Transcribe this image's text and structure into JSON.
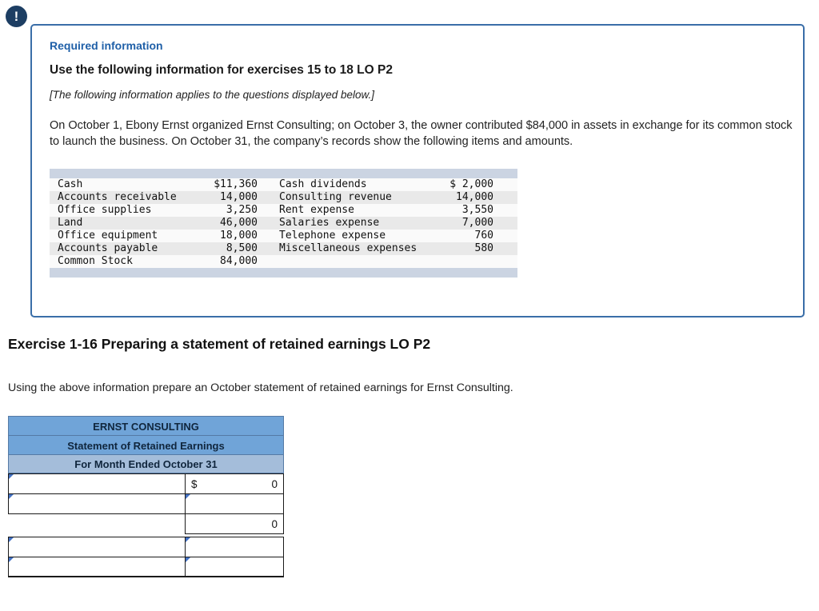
{
  "alert": {
    "icon": "!"
  },
  "info_box": {
    "required_label": "Required information",
    "title": "Use the following information for exercises 15 to 18 LO P2",
    "note": "[The following information applies to the questions displayed below.]",
    "paragraph": "On October 1, Ebony Ernst organized Ernst Consulting; on October 3, the owner contributed $84,000 in assets in exchange for its common stock to launch the business. On October 31, the company’s records show the following items and amounts.",
    "table": {
      "rows": [
        {
          "l_name": "Cash",
          "l_val": "$11,360",
          "r_name": "Cash dividends",
          "r_val": "$ 2,000"
        },
        {
          "l_name": "Accounts receivable",
          "l_val": "14,000",
          "r_name": "Consulting revenue",
          "r_val": "14,000"
        },
        {
          "l_name": "Office supplies",
          "l_val": "3,250",
          "r_name": "Rent expense",
          "r_val": "3,550"
        },
        {
          "l_name": "Land",
          "l_val": "46,000",
          "r_name": "Salaries expense",
          "r_val": "7,000"
        },
        {
          "l_name": "Office equipment",
          "l_val": "18,000",
          "r_name": "Telephone expense",
          "r_val": "760"
        },
        {
          "l_name": "Accounts payable",
          "l_val": "8,500",
          "r_name": "Miscellaneous expenses",
          "r_val": "580"
        },
        {
          "l_name": "Common Stock",
          "l_val": "84,000",
          "r_name": "",
          "r_val": ""
        }
      ]
    }
  },
  "exercise": {
    "heading": "Exercise 1-16 Preparing a statement of retained earnings LO P2",
    "instruction": "Using the above information prepare an October statement of retained earnings for Ernst Consulting."
  },
  "worksheet": {
    "title1": "ERNST CONSULTING",
    "title2": "Statement of Retained Earnings",
    "title3": "For Month Ended October 31",
    "rows": [
      {
        "label": "",
        "prefix": "$",
        "amount": "0"
      },
      {
        "label": "",
        "prefix": "",
        "amount": ""
      },
      {
        "label": "",
        "prefix": "",
        "amount": "0"
      },
      {
        "label": "",
        "prefix": "",
        "amount": ""
      },
      {
        "label": "",
        "prefix": "",
        "amount": ""
      }
    ]
  },
  "colors": {
    "alert_bg": "#1d3e63",
    "box_border": "#3a6ea8",
    "required_label_blue": "#2060a8",
    "table_band": "#cbd4e2",
    "ws_header_blue": "#70a4d8",
    "ws_header_light": "#a4bdda",
    "marker_blue": "#4472c4"
  }
}
